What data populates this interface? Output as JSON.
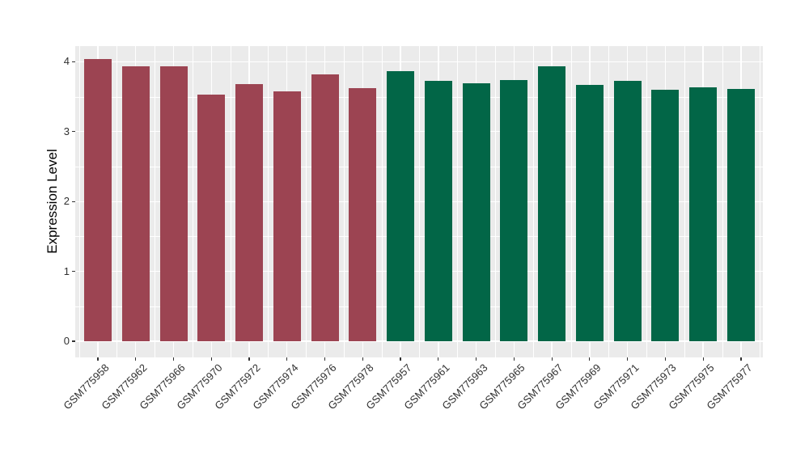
{
  "figure": {
    "background": "#FFFFFF",
    "panel_background": "#EBEBEB",
    "grid_color": "#FFFFFF",
    "tick_color": "#333333",
    "axis_text_color": "#303030"
  },
  "chart_data": {
    "type": "bar",
    "title": "",
    "xlabel": "",
    "ylabel": "Expression Level",
    "ylim": [
      0,
      4.23
    ],
    "yticks": [
      0,
      1,
      2,
      3,
      4
    ],
    "minor_grid_step": 0.5,
    "grid": "white major and minor gridlines on gray panel",
    "legend_position": "none",
    "categories": [
      "GSM775958",
      "GSM775962",
      "GSM775966",
      "GSM775970",
      "GSM775972",
      "GSM775974",
      "GSM775976",
      "GSM775978",
      "GSM775957",
      "GSM775961",
      "GSM775963",
      "GSM775965",
      "GSM775967",
      "GSM775969",
      "GSM775971",
      "GSM775973",
      "GSM775975",
      "GSM775977"
    ],
    "values": [
      4.04,
      3.93,
      3.94,
      3.53,
      3.68,
      3.58,
      3.82,
      3.62,
      3.87,
      3.73,
      3.69,
      3.74,
      3.93,
      3.67,
      3.73,
      3.6,
      3.64,
      3.61
    ],
    "bar_groups": [
      "maroon",
      "maroon",
      "maroon",
      "maroon",
      "maroon",
      "maroon",
      "maroon",
      "maroon",
      "green",
      "green",
      "green",
      "green",
      "green",
      "green",
      "green",
      "green",
      "green",
      "green"
    ],
    "group_colors": {
      "maroon": "#9C4452",
      "green": "#026647"
    }
  }
}
